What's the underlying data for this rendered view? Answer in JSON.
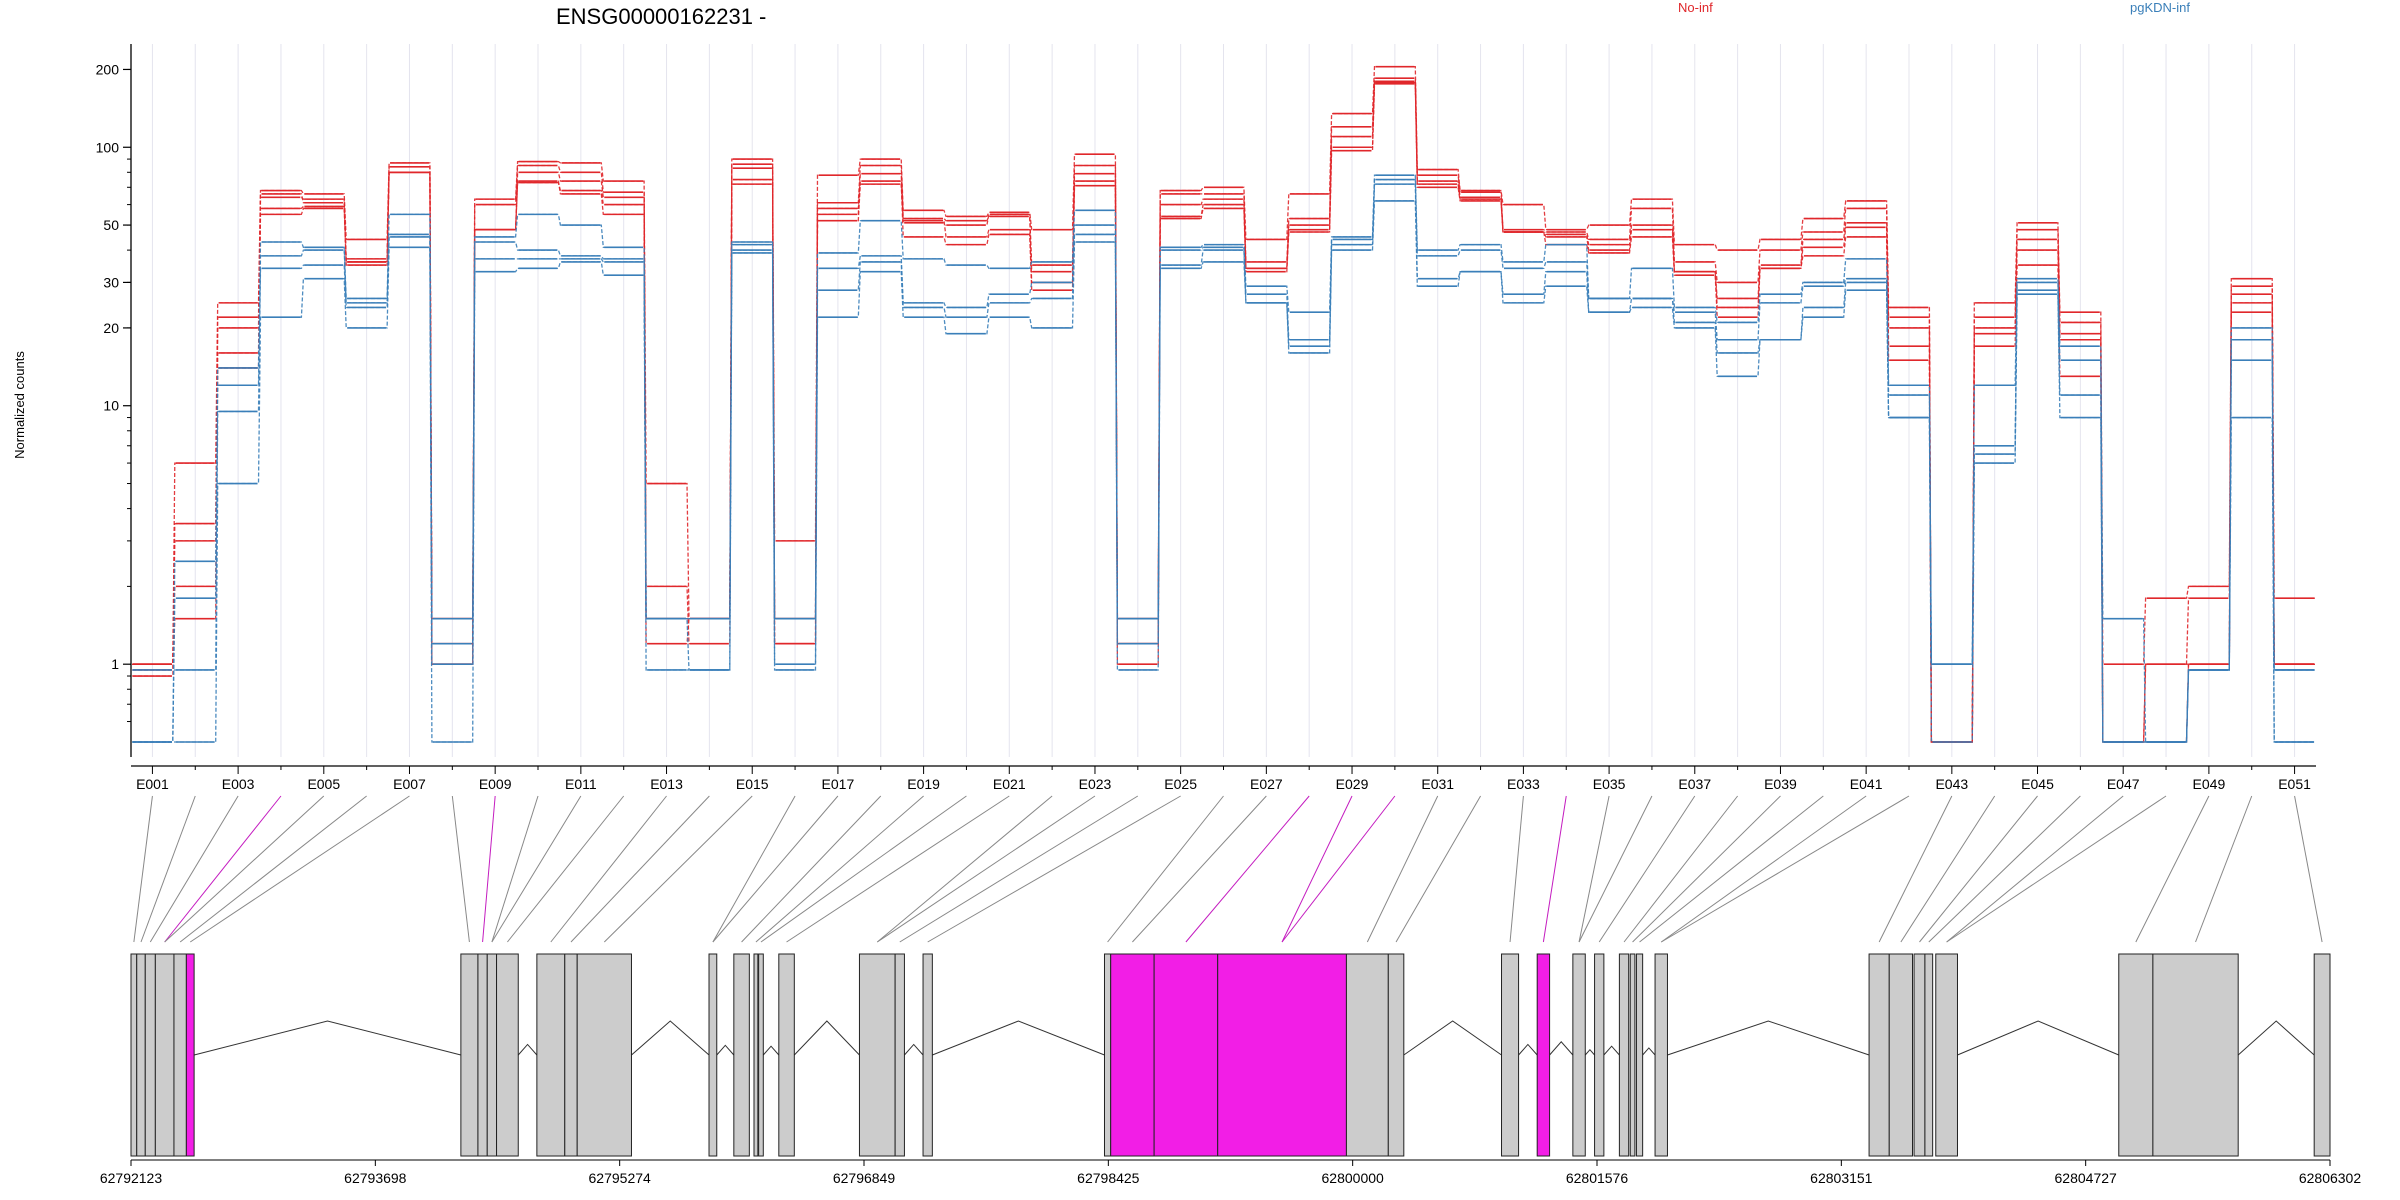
{
  "chart_data": {
    "type": "line",
    "title": "ENSG00000162231 -",
    "ylabel": "Normalized counts",
    "xlabel": "",
    "yscale": "log",
    "ylim": [
      0.5,
      260
    ],
    "yticks": [
      1,
      10,
      20,
      30,
      50,
      100,
      200
    ],
    "legend": {
      "placement": "top-right"
    },
    "groups": [
      {
        "name": "No-inf",
        "color": "#e0272b"
      },
      {
        "name": "pgKDN-inf",
        "color": "#3a7fb9"
      }
    ],
    "exon_labels": [
      "E001",
      "E003",
      "E005",
      "E007",
      "E009",
      "E011",
      "E013",
      "E015",
      "E017",
      "E019",
      "E021",
      "E023",
      "E025",
      "E027",
      "E029",
      "E031",
      "E033",
      "E035",
      "E037",
      "E039",
      "E041",
      "E043",
      "E045",
      "E047",
      "E049",
      "E051"
    ],
    "exons": [
      "E001",
      "E002",
      "E003",
      "E004",
      "E005",
      "E006",
      "E007",
      "E008",
      "E009",
      "E010",
      "E011",
      "E012",
      "E013",
      "E014",
      "E015",
      "E016",
      "E017",
      "E018",
      "E019",
      "E020",
      "E021",
      "E022",
      "E023",
      "E024",
      "E025",
      "E026",
      "E027",
      "E028",
      "E029",
      "E030",
      "E031",
      "E032",
      "E033",
      "E034",
      "E035",
      "E036",
      "E037",
      "E038",
      "E039",
      "E040",
      "E041",
      "E042",
      "E043",
      "E044",
      "E045",
      "E046",
      "E047",
      "E048",
      "E049",
      "E050",
      "E051"
    ],
    "series": [
      {
        "group": "No-inf",
        "values": [
          1.0,
          6.0,
          25.0,
          68.0,
          66.0,
          44.0,
          87.0,
          1.5,
          63.0,
          88.0,
          87.0,
          74.0,
          5.0,
          1.5,
          90.0,
          3.0,
          78.0,
          90.0,
          57.0,
          54.0,
          56.0,
          48.0,
          94.0,
          1.5,
          68.0,
          70.0,
          44.0,
          66.0,
          135.0,
          205.0,
          82.0,
          68.0,
          60.0,
          48.0,
          50.0,
          63.0,
          42.0,
          40.0,
          44.0,
          53.0,
          62.0,
          24.0,
          0.5,
          25.0,
          51.0,
          23.0,
          1.0,
          1.8,
          2.0,
          31.0,
          1.8
        ]
      },
      {
        "group": "No-inf",
        "values": [
          0.95,
          3.5,
          22.0,
          66.0,
          61.0,
          37.0,
          84.0,
          1.2,
          60.0,
          85.0,
          80.0,
          67.0,
          2.0,
          1.2,
          86.0,
          1.5,
          61.0,
          85.0,
          53.0,
          52.0,
          54.0,
          35.0,
          85.0,
          1.2,
          66.0,
          66.0,
          36.0,
          53.0,
          120.0,
          185.0,
          78.0,
          67.0,
          48.0,
          47.0,
          44.0,
          58.0,
          36.0,
          30.0,
          40.0,
          47.0,
          58.0,
          22.0,
          0.5,
          22.0,
          48.0,
          21.0,
          0.5,
          1.0,
          1.8,
          29.0,
          1.0
        ]
      },
      {
        "group": "No-inf",
        "values": [
          1.0,
          3.0,
          20.0,
          58.0,
          59.0,
          36.0,
          80.0,
          1.0,
          48.0,
          80.0,
          74.0,
          64.0,
          1.5,
          1.5,
          83.0,
          1.2,
          55.0,
          79.0,
          51.0,
          50.0,
          55.0,
          33.0,
          79.0,
          1.2,
          60.0,
          63.0,
          34.0,
          50.0,
          110.0,
          180.0,
          74.0,
          64.0,
          47.0,
          46.0,
          42.0,
          50.0,
          33.0,
          26.0,
          35.0,
          44.0,
          51.0,
          20.0,
          0.5,
          20.0,
          44.0,
          19.0,
          0.5,
          0.5,
          1.0,
          27.0,
          1.0
        ]
      },
      {
        "group": "No-inf",
        "values": [
          1.0,
          2.0,
          16.0,
          55.0,
          58.0,
          35.0,
          80.0,
          1.0,
          48.0,
          73.0,
          68.0,
          60.0,
          1.2,
          1.5,
          75.0,
          1.2,
          52.0,
          72.0,
          52.0,
          45.0,
          48.0,
          30.0,
          74.0,
          1.0,
          54.0,
          60.0,
          34.0,
          48.0,
          100.0,
          178.0,
          72.0,
          63.0,
          47.0,
          45.0,
          40.0,
          48.0,
          33.0,
          24.0,
          34.0,
          41.0,
          49.0,
          17.0,
          0.5,
          19.0,
          40.0,
          18.0,
          0.5,
          0.5,
          1.0,
          25.0,
          1.0
        ]
      },
      {
        "group": "No-inf",
        "values": [
          0.9,
          1.5,
          14.0,
          64.0,
          63.0,
          36.0,
          80.0,
          1.5,
          48.0,
          74.0,
          66.0,
          55.0,
          1.5,
          1.5,
          72.0,
          1.5,
          58.0,
          74.0,
          45.0,
          42.0,
          46.0,
          28.0,
          71.0,
          1.5,
          53.0,
          58.0,
          33.0,
          47.0,
          97.0,
          176.0,
          70.0,
          62.0,
          47.0,
          42.0,
          39.0,
          45.0,
          32.0,
          22.0,
          34.0,
          38.0,
          45.0,
          15.0,
          0.5,
          17.0,
          35.0,
          13.0,
          0.5,
          1.0,
          1.0,
          23.0,
          1.0
        ]
      },
      {
        "group": "pgKDN-inf",
        "values": [
          0.5,
          2.5,
          14.0,
          43.0,
          41.0,
          26.0,
          55.0,
          1.5,
          45.0,
          55.0,
          50.0,
          41.0,
          1.5,
          1.5,
          43.0,
          1.5,
          39.0,
          52.0,
          37.0,
          35.0,
          34.0,
          36.0,
          57.0,
          1.5,
          41.0,
          42.0,
          29.0,
          23.0,
          45.0,
          78.0,
          40.0,
          42.0,
          36.0,
          42.0,
          26.0,
          34.0,
          24.0,
          21.0,
          27.0,
          30.0,
          37.0,
          12.0,
          1.0,
          12.0,
          31.0,
          17.0,
          1.5,
          0.5,
          0.95,
          20.0,
          0.5
        ]
      },
      {
        "group": "pgKDN-inf",
        "values": [
          0.5,
          1.8,
          12.0,
          38.0,
          40.0,
          25.0,
          46.0,
          1.2,
          43.0,
          40.0,
          38.0,
          37.0,
          1.5,
          1.5,
          42.0,
          1.5,
          34.0,
          38.0,
          25.0,
          24.0,
          27.0,
          30.0,
          50.0,
          1.5,
          40.0,
          41.0,
          27.0,
          18.0,
          44.0,
          75.0,
          38.0,
          40.0,
          34.0,
          36.0,
          26.0,
          26.0,
          23.0,
          18.0,
          25.0,
          29.0,
          31.0,
          11.0,
          1.0,
          7.0,
          30.0,
          15.0,
          0.5,
          0.5,
          0.95,
          18.0,
          0.95
        ]
      },
      {
        "group": "pgKDN-inf",
        "values": [
          0.95,
          0.95,
          9.5,
          34.0,
          35.0,
          24.0,
          45.0,
          1.0,
          37.0,
          37.0,
          37.0,
          36.0,
          1.5,
          0.95,
          40.0,
          1.0,
          28.0,
          36.0,
          24.0,
          22.0,
          25.0,
          26.0,
          46.0,
          1.2,
          35.0,
          40.0,
          25.0,
          17.0,
          42.0,
          72.0,
          31.0,
          33.0,
          27.0,
          33.0,
          23.0,
          26.0,
          21.0,
          16.0,
          18.0,
          24.0,
          30.0,
          9.0,
          1.0,
          6.5,
          28.0,
          11.0,
          0.5,
          0.5,
          0.95,
          15.0,
          0.95
        ]
      },
      {
        "group": "pgKDN-inf",
        "values": [
          0.5,
          0.5,
          5.0,
          22.0,
          31.0,
          20.0,
          41.0,
          0.5,
          33.0,
          34.0,
          36.0,
          32.0,
          0.95,
          0.95,
          39.0,
          0.95,
          22.0,
          33.0,
          22.0,
          19.0,
          22.0,
          20.0,
          43.0,
          0.95,
          34.0,
          36.0,
          25.0,
          16.0,
          40.0,
          62.0,
          29.0,
          33.0,
          25.0,
          29.0,
          23.0,
          24.0,
          20.0,
          13.0,
          18.0,
          22.0,
          28.0,
          9.0,
          0.5,
          6.0,
          27.0,
          9.0,
          0.5,
          0.5,
          0.95,
          9.0,
          0.5
        ]
      }
    ],
    "genomic_ticks": [
      "62792123",
      "62793698",
      "62795274",
      "62796849",
      "62798425",
      "62800000",
      "62801576",
      "62803151",
      "62804727",
      "62806302"
    ],
    "gene_model": {
      "highlighted_exons": [
        "E004",
        "E009",
        "E028",
        "E029",
        "E030",
        "E034"
      ],
      "highlight_color": "#f21ee6",
      "exon_color": "#cccccc"
    }
  }
}
